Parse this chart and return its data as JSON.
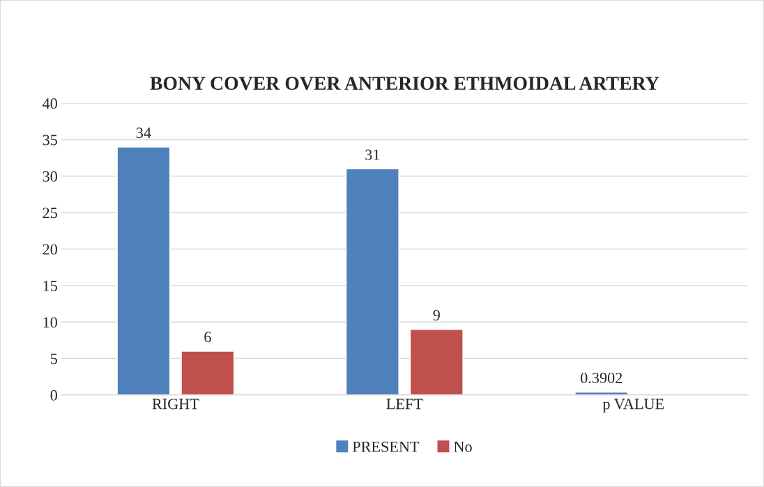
{
  "chart_data": {
    "type": "bar",
    "title": "BONY COVER OVER ANTERIOR ETHMOIDAL ARTERY",
    "categories": [
      "RIGHT",
      "LEFT",
      "p VALUE"
    ],
    "series": [
      {
        "name": "PRESENT",
        "color": "#4f81bd",
        "values": [
          34,
          31,
          0.3902
        ],
        "value_labels": [
          "34",
          "31",
          "0.3902"
        ]
      },
      {
        "name": "No",
        "color": "#c0504d",
        "values": [
          6,
          9,
          null
        ],
        "value_labels": [
          "6",
          "9",
          null
        ]
      }
    ],
    "ylim": [
      0,
      40
    ],
    "yticks": [
      0,
      5,
      10,
      15,
      20,
      25,
      30,
      35,
      40
    ],
    "grid": "y",
    "legend": "bottom"
  }
}
